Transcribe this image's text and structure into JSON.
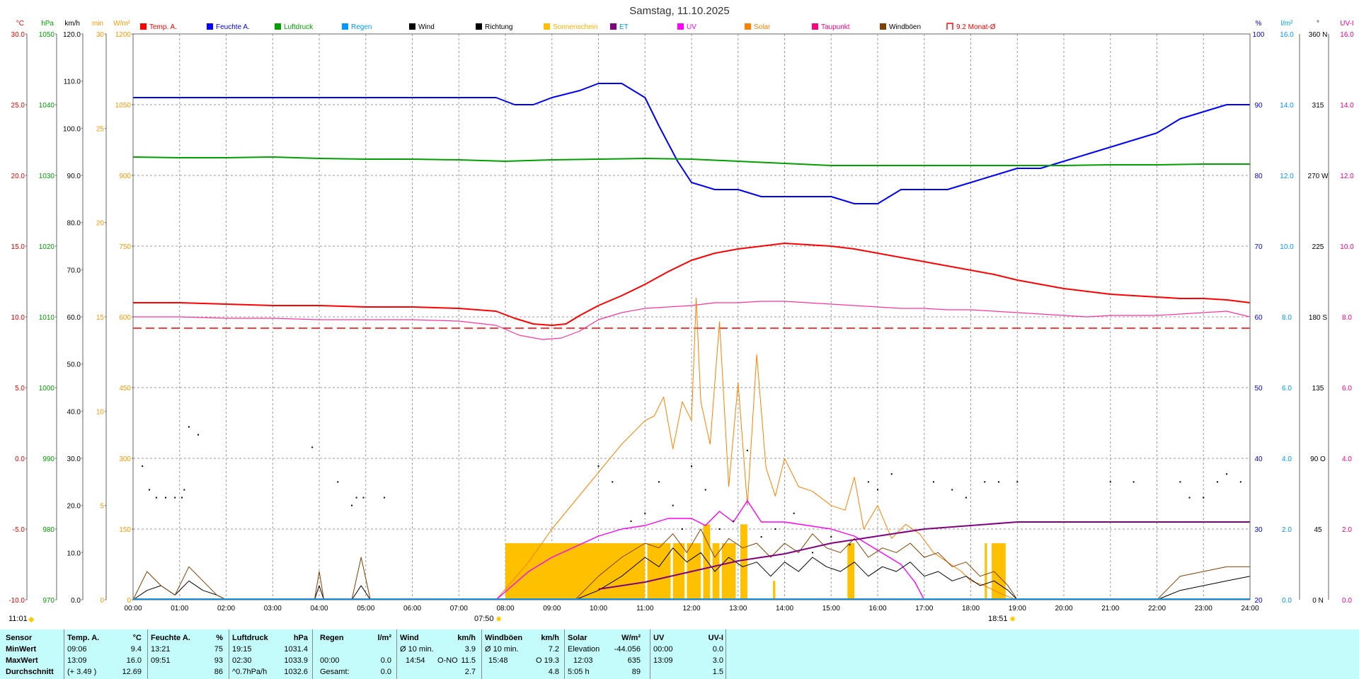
{
  "chart_data": {
    "type": "line",
    "title": "Samstag, 11.10.2025",
    "x_ticks": [
      "00:00",
      "01:00",
      "02:00",
      "03:00",
      "04:00",
      "05:00",
      "06:00",
      "07:00",
      "08:00",
      "09:00",
      "10:00",
      "11:00",
      "12:00",
      "13:00",
      "14:00",
      "15:00",
      "16:00",
      "17:00",
      "18:00",
      "19:00",
      "20:00",
      "21:00",
      "22:00",
      "23:00",
      "24:00"
    ],
    "legend": [
      {
        "name": "Temp. A.",
        "color": "#ff0000",
        "label_color": "#ff0000"
      },
      {
        "name": "Feuchte A.",
        "color": "#0000ff",
        "label_color": "#0000ff"
      },
      {
        "name": "Luftdruck",
        "color": "#00a000",
        "label_color": "#00a000"
      },
      {
        "name": "Regen",
        "color": "#0099ff",
        "label_color": "#0099ff"
      },
      {
        "name": "Wind",
        "color": "#000000",
        "label_color": "#000000"
      },
      {
        "name": "Richtung",
        "color": "#000000",
        "label_color": "#000000"
      },
      {
        "name": "Sonnenschein",
        "color": "#ffc000",
        "label_color": "#ffb000"
      },
      {
        "name": "ET",
        "color": "#800080",
        "label_color": "#0099ff"
      },
      {
        "name": "UV",
        "color": "#ff00ff",
        "label_color": "#ff00ff"
      },
      {
        "name": "Solar",
        "color": "#ff8000",
        "label_color": "#ff8000"
      },
      {
        "name": "Taupunkt",
        "color": "#ff0080",
        "label_color": "#ff0080"
      },
      {
        "name": "Windböen",
        "color": "#804000",
        "label_color": "#000000"
      },
      {
        "name": "9.2 Monat-Ø",
        "color": "#ff0000",
        "label_color": "#ff0000"
      }
    ],
    "left_axes": [
      {
        "unit": "°C",
        "color": "#ff0000",
        "ticks": [
          "30.0",
          "25.0",
          "20.0",
          "15.0",
          "10.0",
          "5.0",
          "0.0",
          "-5.0",
          "-10.0"
        ]
      },
      {
        "unit": "hPa",
        "color": "#00a000",
        "ticks": [
          "1050",
          "1040",
          "1030",
          "1020",
          "1010",
          "1000",
          "990",
          "980",
          "970"
        ]
      },
      {
        "unit": "km/h",
        "color": "#000000",
        "ticks": [
          "120.0",
          "110.0",
          "100.0",
          "90.0",
          "80.0",
          "70.0",
          "60.0",
          "50.0",
          "40.0",
          "30.0",
          "20.0",
          "10.0",
          "0.0"
        ]
      },
      {
        "unit": "min",
        "color": "#ff9900",
        "ticks": [
          "30",
          "25",
          "20",
          "15",
          "10",
          "5",
          "0"
        ]
      },
      {
        "unit": "W/m²",
        "color": "#ff9900",
        "ticks": [
          "1200",
          "1050",
          "900",
          "750",
          "600",
          "450",
          "300",
          "150",
          "0"
        ]
      }
    ],
    "right_axes": [
      {
        "unit": "%",
        "color": "#0000ff",
        "ticks": [
          "100",
          "90",
          "80",
          "70",
          "60",
          "50",
          "40",
          "30",
          "20"
        ]
      },
      {
        "unit": "l/m²",
        "color": "#0099ff",
        "ticks": [
          "16.0",
          "14.0",
          "12.0",
          "10.0",
          "8.0",
          "6.0",
          "4.0",
          "2.0",
          "0.0"
        ]
      },
      {
        "unit": "°",
        "color": "#000000",
        "ticks": [
          "360 N",
          "315",
          "270 W",
          "225",
          "180 S",
          "135",
          "90 O",
          "45",
          "0 N"
        ]
      },
      {
        "unit": "UV-I",
        "color": "#ff0080",
        "ticks": [
          "16.0",
          "14.0",
          "12.0",
          "10.0",
          "8.0",
          "6.0",
          "4.0",
          "2.0",
          "0.0"
        ]
      }
    ],
    "sunrise": "07:50",
    "sunset": "18:51",
    "moon": "11:01",
    "monthly_avg_temp": 9.2,
    "series": [
      {
        "name": "Temp. A.",
        "unit": "°C",
        "x": [
          0,
          1,
          2,
          3,
          4,
          5,
          6,
          7,
          7.8,
          8.2,
          8.6,
          9.0,
          9.3,
          9.6,
          10.0,
          10.5,
          11.0,
          11.5,
          12.0,
          12.5,
          13.0,
          13.5,
          14.0,
          14.5,
          15.0,
          15.5,
          16.0,
          16.5,
          17.0,
          17.5,
          18.0,
          18.5,
          19.0,
          19.5,
          20.0,
          20.5,
          21.0,
          21.5,
          22.0,
          22.5,
          23.0,
          23.5,
          24.0
        ],
        "y": [
          11.0,
          11.0,
          10.9,
          10.8,
          10.8,
          10.7,
          10.7,
          10.6,
          10.4,
          9.9,
          9.5,
          9.4,
          9.5,
          10.1,
          10.8,
          11.5,
          12.3,
          13.2,
          14.0,
          14.5,
          14.8,
          15.0,
          15.2,
          15.1,
          15.0,
          14.8,
          14.5,
          14.2,
          13.9,
          13.6,
          13.3,
          13.0,
          12.6,
          12.3,
          12.0,
          11.8,
          11.6,
          11.5,
          11.4,
          11.3,
          11.3,
          11.2,
          11.0
        ]
      },
      {
        "name": "Feuchte A.",
        "unit": "%",
        "x": [
          0,
          1,
          2,
          3,
          4,
          5,
          6,
          7,
          7.8,
          8.2,
          8.6,
          9.0,
          9.6,
          10.0,
          10.5,
          11.0,
          11.3,
          11.7,
          12.0,
          12.5,
          13.0,
          13.5,
          14.0,
          14.5,
          15.0,
          15.5,
          16.0,
          16.5,
          17.0,
          17.5,
          18.0,
          18.5,
          19.0,
          19.5,
          20.0,
          20.5,
          21.0,
          21.5,
          22.0,
          22.5,
          23.0,
          23.5,
          24.0
        ],
        "y": [
          91,
          91,
          91,
          91,
          91,
          91,
          91,
          91,
          91,
          90,
          90,
          91,
          92,
          93,
          93,
          91,
          87,
          82,
          79,
          78,
          78,
          77,
          77,
          77,
          77,
          76,
          76,
          78,
          78,
          78,
          79,
          80,
          81,
          81,
          82,
          83,
          84,
          85,
          86,
          88,
          89,
          90,
          90
        ]
      },
      {
        "name": "Luftdruck",
        "unit": "hPa",
        "x": [
          0,
          1,
          2,
          3,
          4,
          5,
          6,
          7,
          8,
          9,
          10,
          11,
          12,
          13,
          14,
          15,
          16,
          17,
          18,
          19,
          20,
          21,
          22,
          23,
          24
        ],
        "y": [
          1032.6,
          1032.5,
          1032.5,
          1032.6,
          1032.4,
          1032.3,
          1032.3,
          1032.2,
          1032.0,
          1032.2,
          1032.3,
          1032.4,
          1032.3,
          1032.0,
          1031.7,
          1031.4,
          1031.4,
          1031.4,
          1031.4,
          1031.4,
          1031.4,
          1031.5,
          1031.5,
          1031.6,
          1031.6
        ]
      },
      {
        "name": "Taupunkt",
        "unit": "°C",
        "x": [
          0,
          1,
          2,
          3,
          4,
          5,
          6,
          7,
          7.8,
          8.3,
          8.8,
          9.2,
          9.6,
          10.0,
          10.5,
          11.0,
          11.5,
          12.0,
          12.5,
          13.0,
          13.5,
          14.0,
          14.5,
          15.0,
          15.5,
          16.0,
          16.5,
          17.0,
          17.5,
          18.0,
          18.5,
          19.0,
          19.5,
          20.0,
          20.5,
          21.0,
          21.5,
          22.0,
          22.5,
          23.0,
          23.5,
          24.0
        ],
        "y": [
          10.0,
          10.0,
          9.9,
          9.9,
          9.8,
          9.8,
          9.8,
          9.7,
          9.4,
          8.7,
          8.4,
          8.5,
          9.0,
          9.8,
          10.3,
          10.6,
          10.7,
          10.8,
          11.0,
          11.0,
          11.1,
          11.1,
          11.0,
          10.9,
          10.8,
          10.7,
          10.6,
          10.6,
          10.5,
          10.5,
          10.4,
          10.3,
          10.2,
          10.1,
          10.0,
          10.1,
          10.1,
          10.1,
          10.2,
          10.3,
          10.4,
          10.0
        ]
      },
      {
        "name": "Solar",
        "unit": "W/m²",
        "x": [
          7.8,
          8.5,
          9.0,
          9.5,
          10.0,
          10.5,
          11.0,
          11.2,
          11.4,
          11.6,
          11.8,
          12.0,
          12.1,
          12.2,
          12.4,
          12.6,
          12.8,
          13.0,
          13.2,
          13.4,
          13.6,
          13.8,
          14.0,
          14.3,
          14.6,
          15.0,
          15.3,
          15.5,
          15.7,
          16.0,
          16.3,
          16.6,
          16.9,
          17.2,
          17.5,
          17.8,
          18.0,
          18.3,
          18.6,
          18.85,
          19.0
        ],
        "y": [
          0,
          80,
          150,
          210,
          270,
          330,
          380,
          390,
          430,
          320,
          420,
          380,
          640,
          420,
          330,
          590,
          240,
          460,
          200,
          520,
          280,
          220,
          300,
          240,
          230,
          200,
          190,
          260,
          150,
          200,
          130,
          160,
          140,
          100,
          80,
          60,
          40,
          30,
          15,
          5,
          0
        ]
      },
      {
        "name": "UV",
        "unit": "UV-I",
        "x": [
          7.8,
          8.5,
          9.0,
          9.5,
          10.0,
          10.5,
          11.0,
          11.5,
          12.0,
          12.3,
          12.6,
          12.9,
          13.2,
          13.5,
          14.0,
          14.5,
          15.0,
          15.5,
          16.0,
          16.5,
          16.8,
          17.0
        ],
        "y": [
          0,
          0.8,
          1.2,
          1.5,
          1.8,
          2.0,
          2.1,
          2.3,
          2.3,
          2.1,
          2.5,
          2.2,
          2.8,
          2.2,
          2.2,
          2.1,
          2.0,
          1.8,
          1.4,
          1.0,
          0.5,
          0
        ]
      },
      {
        "name": "Sonnenschein",
        "unit": "min",
        "x": [
          8.0,
          9.0,
          10.0,
          11.0,
          11.5,
          12.0,
          12.5,
          13.0,
          13.3,
          14.0,
          15.4,
          18.3,
          18.7
        ],
        "y": [
          3,
          3,
          3,
          3,
          3,
          3,
          3,
          4,
          3,
          1,
          3,
          3,
          3
        ]
      },
      {
        "name": "Wind",
        "unit": "km/h",
        "x": [
          0,
          0.3,
          0.6,
          0.9,
          1.2,
          1.5,
          1.8,
          2,
          3,
          3.9,
          4.0,
          4.1,
          4.7,
          4.9,
          5.1,
          5.4,
          6,
          7,
          8,
          9,
          9.5,
          10,
          10.5,
          11,
          11.3,
          11.6,
          11.9,
          12.2,
          12.5,
          12.8,
          13.1,
          13.4,
          13.7,
          14,
          14.3,
          14.6,
          14.9,
          15.2,
          15.5,
          15.8,
          16.1,
          16.4,
          16.7,
          17,
          17.3,
          17.6,
          17.9,
          18.2,
          18.5,
          18.8,
          19,
          20,
          21,
          22,
          22.5,
          23,
          23.5,
          24
        ],
        "y": [
          0,
          2,
          3,
          1,
          4,
          2,
          1,
          0,
          0,
          0,
          3,
          0,
          0,
          3,
          0,
          0,
          0,
          0,
          0,
          0,
          0,
          2,
          5,
          9,
          7,
          11,
          8,
          10,
          6,
          9,
          7,
          8,
          5,
          8,
          6,
          9,
          7,
          6,
          8,
          5,
          7,
          6,
          8,
          5,
          6,
          4,
          5,
          3,
          4,
          2,
          0,
          0,
          0,
          0,
          2,
          3,
          4,
          5
        ]
      },
      {
        "name": "Windböen",
        "unit": "km/h",
        "x": [
          0,
          0.3,
          0.6,
          0.9,
          1.2,
          1.5,
          1.8,
          2,
          3,
          3.9,
          4.0,
          4.1,
          4.7,
          4.9,
          5.1,
          5.4,
          6,
          7,
          8,
          9,
          9.5,
          10,
          10.5,
          11,
          11.3,
          11.6,
          11.9,
          12.2,
          12.5,
          12.8,
          13.1,
          13.4,
          13.7,
          14,
          14.3,
          14.6,
          14.9,
          15.2,
          15.5,
          15.8,
          16.1,
          16.4,
          16.7,
          17,
          17.3,
          17.6,
          17.9,
          18.2,
          18.5,
          18.8,
          19,
          20,
          21,
          22,
          22.5,
          23,
          23.5,
          24
        ],
        "y": [
          0,
          6,
          3,
          1,
          7,
          4,
          1,
          0,
          0,
          0,
          6,
          0,
          0,
          9,
          0,
          0,
          0,
          0,
          0,
          0,
          0,
          5,
          9,
          12,
          11,
          14,
          10,
          15,
          9,
          13,
          11,
          12,
          9,
          12,
          10,
          14,
          11,
          10,
          13,
          9,
          11,
          10,
          12,
          9,
          10,
          7,
          8,
          5,
          6,
          3,
          0,
          0,
          0,
          0,
          5,
          6,
          7,
          7
        ]
      },
      {
        "name": "ET",
        "unit": "l/m²",
        "x": [
          10.0,
          11.0,
          12.0,
          13.0,
          14.0,
          15.0,
          16.0,
          17.0,
          18.0,
          19.0,
          20.0,
          21.0,
          22.0,
          23.0,
          24.0
        ],
        "y": [
          0.3,
          0.5,
          0.8,
          1.1,
          1.3,
          1.6,
          1.8,
          2.0,
          2.1,
          2.2,
          2.2,
          2.2,
          2.2,
          2.2,
          2.2
        ]
      },
      {
        "name": "Richtung",
        "unit": "°",
        "x": [
          0.2,
          0.35,
          0.5,
          0.7,
          0.9,
          1.05,
          1.1,
          1.2,
          1.4,
          3.85,
          4.4,
          4.7,
          4.8,
          4.95,
          5.4,
          10.0,
          10.3,
          10.7,
          11.0,
          11.3,
          11.6,
          11.8,
          12.0,
          12.3,
          12.6,
          12.9,
          13.2,
          13.5,
          13.8,
          14.2,
          14.6,
          15.0,
          15.4,
          15.8,
          16.0,
          16.3,
          17.2,
          17.6,
          17.9,
          18.3,
          18.6,
          19.0,
          21.0,
          21.5,
          22.5,
          22.7,
          23.0,
          23.3,
          23.5,
          23.8
        ],
        "y": [
          85,
          70,
          65,
          65,
          65,
          65,
          70,
          110,
          105,
          97,
          75,
          60,
          65,
          65,
          65,
          85,
          75,
          50,
          55,
          75,
          60,
          45,
          85,
          70,
          45,
          50,
          95,
          40,
          45,
          55,
          30,
          40,
          35,
          75,
          70,
          80,
          75,
          70,
          65,
          75,
          75,
          75,
          75,
          75,
          75,
          65,
          65,
          75,
          80,
          75
        ]
      }
    ]
  },
  "stats": {
    "headers": {
      "sensor": "Sensor",
      "temp": "Temp. A.",
      "temp_unit": "°C",
      "hum": "Feuchte A.",
      "hum_unit": "%",
      "press": "Luftdruck",
      "press_unit": "hPa",
      "rain": "Regen",
      "rain_unit": "l/m²",
      "wind": "Wind",
      "wind_unit": "km/h",
      "gust": "Windböen",
      "gust_unit": "km/h",
      "solar": "Solar",
      "solar_unit": "W/m²",
      "uv": "UV",
      "uv_unit": "UV-I"
    },
    "row_labels": [
      "MinWert",
      "MaxWert",
      "Durchschnitt"
    ],
    "temp": {
      "times": [
        "09:06",
        "13:09",
        "(+ 3.49 )"
      ],
      "values": [
        "9.4",
        "16.0",
        "12.69"
      ]
    },
    "hum": {
      "times": [
        "13:21",
        "09:51",
        ""
      ],
      "values": [
        "75",
        "93",
        "86"
      ]
    },
    "press": {
      "times": [
        "19:15",
        "02:30",
        "^0.7hPa/h"
      ],
      "values": [
        "1031.4",
        "1033.9",
        "1032.6"
      ]
    },
    "rain": {
      "times": [
        "",
        "00:00",
        "Gesamt:"
      ],
      "values": [
        "",
        "0.0",
        "0.0"
      ]
    },
    "wind": {
      "col1": [
        "Ø 10 min.",
        "14:54",
        ""
      ],
      "col2": [
        "",
        "O-NO",
        ""
      ],
      "values": [
        "3.9",
        "11.5",
        "2.7"
      ]
    },
    "gust": {
      "col1": [
        "Ø 10 min.",
        "15:48",
        ""
      ],
      "col2": [
        "",
        "O",
        ""
      ],
      "values": [
        "7.2",
        "19.3",
        "4.8"
      ]
    },
    "solar": {
      "col1": [
        "Elevation",
        "12:03",
        "5:05 h"
      ],
      "values": [
        "-44.056",
        "635",
        "89"
      ]
    },
    "uv": {
      "times": [
        "00:00",
        "13:09",
        ""
      ],
      "values": [
        "0.0",
        "3.0",
        "1.5"
      ]
    }
  }
}
